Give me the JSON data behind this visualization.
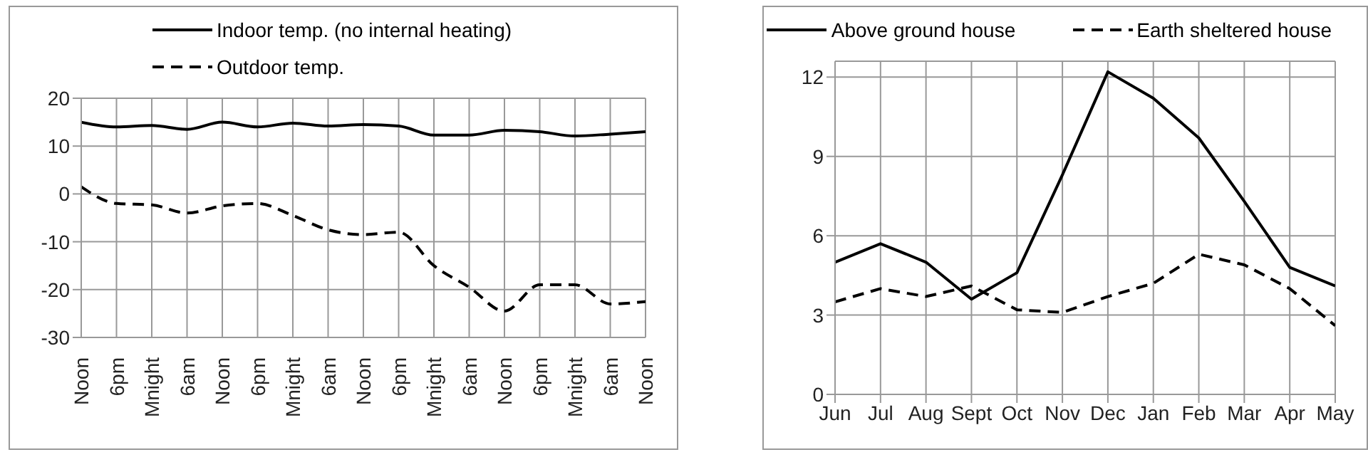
{
  "chart_data": [
    {
      "type": "line",
      "categories": [
        "Noon",
        "6pm",
        "Mnight",
        "6am",
        "Noon",
        "6pm",
        "Mnight",
        "6am",
        "Noon",
        "6pm",
        "Mnight",
        "6am",
        "Noon",
        "6pm",
        "Mnight",
        "6am",
        "Noon"
      ],
      "series": [
        {
          "name": "Indoor temp. (no internal heating)",
          "color": "#000000",
          "line_style": "solid",
          "values": [
            15,
            14,
            14.3,
            13.5,
            15,
            14,
            14.8,
            14.2,
            14.5,
            14.2,
            12.3,
            12.3,
            13.3,
            13,
            12.1,
            12.5,
            13
          ]
        },
        {
          "name": "Outdoor temp.",
          "color": "#000000",
          "line_style": "dashed",
          "values": [
            1.5,
            -2,
            -2.3,
            -4,
            -2.5,
            -2,
            -4.5,
            -7.5,
            -8.5,
            -8,
            -15,
            -19.5,
            -24.5,
            -19,
            -19,
            -23,
            -22.5
          ]
        }
      ],
      "ylim": [
        -30,
        20
      ],
      "yticks": [
        -30,
        -20,
        -10,
        0,
        10,
        20
      ],
      "grid": true,
      "legend": "top",
      "marker": "none"
    },
    {
      "type": "line",
      "categories": [
        "Jun",
        "Jul",
        "Aug",
        "Sept",
        "Oct",
        "Nov",
        "Dec",
        "Jan",
        "Feb",
        "Mar",
        "Apr",
        "May"
      ],
      "series": [
        {
          "name": "Above ground house",
          "color": "#000000",
          "line_style": "solid",
          "values": [
            5,
            5.7,
            5,
            3.6,
            4.6,
            8.3,
            12.2,
            11.2,
            9.7,
            7.3,
            4.8,
            4.1
          ]
        },
        {
          "name": "Earth sheltered house",
          "color": "#000000",
          "line_style": "dashed",
          "values": [
            3.5,
            4,
            3.7,
            4.1,
            3.2,
            3.1,
            3.7,
            4.2,
            5.3,
            4.9,
            4,
            2.6
          ]
        }
      ],
      "ylim": [
        0,
        12.6
      ],
      "yticks": [
        0,
        3,
        6,
        9,
        12
      ],
      "grid": true,
      "legend": "top",
      "marker": "none"
    }
  ]
}
